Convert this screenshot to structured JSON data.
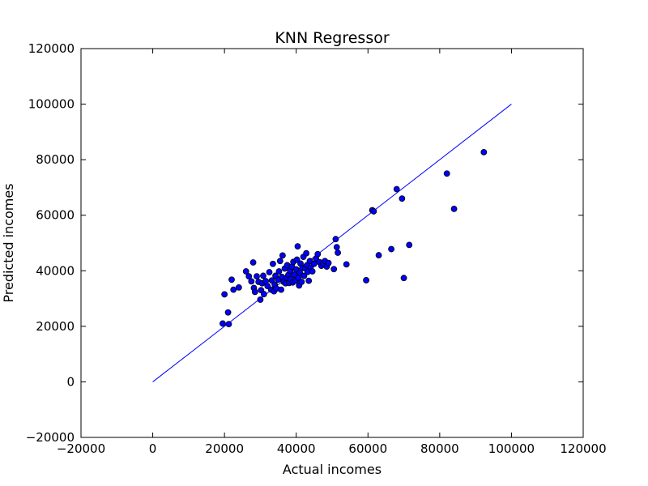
{
  "chart_data": {
    "type": "scatter",
    "title": "KNN Regressor",
    "xlabel": "Actual incomes",
    "ylabel": "Predicted incomes",
    "xlim": [
      -20000,
      120000
    ],
    "ylim": [
      -20000,
      120000
    ],
    "xticks": [
      -20000,
      0,
      20000,
      40000,
      60000,
      80000,
      100000,
      120000
    ],
    "yticks": [
      -20000,
      0,
      20000,
      40000,
      60000,
      80000,
      100000,
      120000
    ],
    "grid": false,
    "colors": {
      "marker": "#0000ff",
      "marker_edge": "#000000",
      "line": "#0000ff"
    },
    "reference_line": {
      "x": [
        0,
        100000
      ],
      "y": [
        0,
        100000
      ]
    },
    "series": [
      {
        "points": [
          [
            19500,
            21000
          ],
          [
            20000,
            31500
          ],
          [
            21000,
            25000
          ],
          [
            21200,
            20800
          ],
          [
            22000,
            36800
          ],
          [
            22500,
            33200
          ],
          [
            24000,
            34000
          ],
          [
            26000,
            39800
          ],
          [
            26800,
            38000
          ],
          [
            27500,
            36200
          ],
          [
            28000,
            43000
          ],
          [
            28200,
            33800
          ],
          [
            28500,
            32400
          ],
          [
            29000,
            38000
          ],
          [
            29500,
            36000
          ],
          [
            30000,
            29600
          ],
          [
            30200,
            33000
          ],
          [
            30500,
            35500
          ],
          [
            30800,
            38200
          ],
          [
            31000,
            31600
          ],
          [
            31500,
            36300
          ],
          [
            32000,
            34500
          ],
          [
            32500,
            39500
          ],
          [
            33000,
            33200
          ],
          [
            33200,
            36500
          ],
          [
            33500,
            42500
          ],
          [
            33800,
            32600
          ],
          [
            34000,
            35000
          ],
          [
            34200,
            38200
          ],
          [
            34500,
            33600
          ],
          [
            35000,
            36800
          ],
          [
            35200,
            39800
          ],
          [
            35500,
            43500
          ],
          [
            35800,
            33200
          ],
          [
            36000,
            37800
          ],
          [
            36200,
            45500
          ],
          [
            36500,
            36000
          ],
          [
            36800,
            40800
          ],
          [
            37000,
            35500
          ],
          [
            37300,
            37500
          ],
          [
            37500,
            42000
          ],
          [
            37800,
            38500
          ],
          [
            38000,
            35600
          ],
          [
            38300,
            40000
          ],
          [
            38500,
            37000
          ],
          [
            38800,
            41500
          ],
          [
            39000,
            35800
          ],
          [
            39200,
            43200
          ],
          [
            39500,
            38600
          ],
          [
            39800,
            36400
          ],
          [
            40000,
            40500
          ],
          [
            40200,
            44000
          ],
          [
            40400,
            48800
          ],
          [
            40600,
            37400
          ],
          [
            40800,
            34700
          ],
          [
            41000,
            39300
          ],
          [
            41200,
            42600
          ],
          [
            41500,
            36000
          ],
          [
            41700,
            41000
          ],
          [
            42000,
            45000
          ],
          [
            42200,
            38200
          ],
          [
            42500,
            40800
          ],
          [
            42800,
            46300
          ],
          [
            43000,
            42000
          ],
          [
            43200,
            39600
          ],
          [
            43500,
            36400
          ],
          [
            43800,
            43500
          ],
          [
            44000,
            41200
          ],
          [
            44500,
            39800
          ],
          [
            45000,
            42500
          ],
          [
            45500,
            44400
          ],
          [
            46000,
            46000
          ],
          [
            46500,
            43100
          ],
          [
            47000,
            41800
          ],
          [
            47500,
            42600
          ],
          [
            48000,
            43500
          ],
          [
            48500,
            41500
          ],
          [
            49000,
            42800
          ],
          [
            50500,
            40600
          ],
          [
            51000,
            51400
          ],
          [
            51300,
            48500
          ],
          [
            51600,
            46500
          ],
          [
            54000,
            42300
          ],
          [
            59500,
            36600
          ],
          [
            61200,
            61800
          ],
          [
            61600,
            61400
          ],
          [
            63000,
            45600
          ],
          [
            66500,
            47800
          ],
          [
            68000,
            69400
          ],
          [
            69500,
            66000
          ],
          [
            70000,
            37400
          ],
          [
            71500,
            49300
          ],
          [
            82000,
            75000
          ],
          [
            84000,
            62300
          ],
          [
            92300,
            82700
          ]
        ]
      }
    ]
  }
}
